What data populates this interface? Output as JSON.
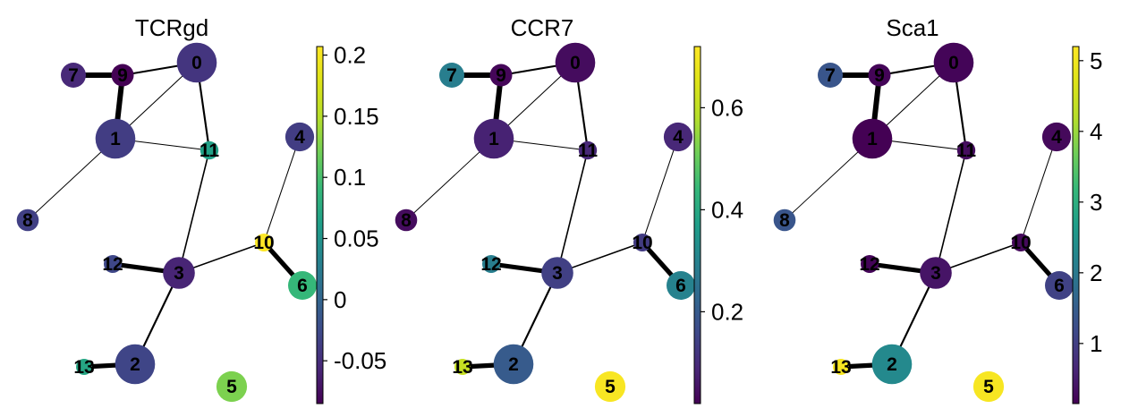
{
  "chart_data": {
    "type": "graph",
    "nodes": [
      "0",
      "1",
      "2",
      "3",
      "4",
      "5",
      "6",
      "7",
      "8",
      "9",
      "10",
      "11",
      "12",
      "13"
    ],
    "node_sizes": [
      22.3,
      22.3,
      22.3,
      17.8,
      16.1,
      17.1,
      16.0,
      14.0,
      12.3,
      12.5,
      10.0,
      10.2,
      10.0,
      9.0
    ],
    "edges": [
      {
        "source": "9",
        "target": "7",
        "weight": 1.0
      },
      {
        "source": "9",
        "target": "1",
        "weight": 1.0
      },
      {
        "source": "9",
        "target": "0",
        "weight": 0.3
      },
      {
        "source": "1",
        "target": "0",
        "weight": 0.1
      },
      {
        "source": "0",
        "target": "11",
        "weight": 0.3
      },
      {
        "source": "1",
        "target": "11",
        "weight": 0.1
      },
      {
        "source": "1",
        "target": "8",
        "weight": 0.08
      },
      {
        "source": "11",
        "target": "3",
        "weight": 0.2
      },
      {
        "source": "4",
        "target": "10",
        "weight": 0.1
      },
      {
        "source": "10",
        "target": "3",
        "weight": 0.2
      },
      {
        "source": "10",
        "target": "6",
        "weight": 0.85
      },
      {
        "source": "12",
        "target": "3",
        "weight": 0.85
      },
      {
        "source": "3",
        "target": "2",
        "weight": 0.3
      },
      {
        "source": "13",
        "target": "2",
        "weight": 0.85
      }
    ],
    "panels": [
      {
        "title": "TCRgd",
        "colormap": "viridis",
        "vmin": -0.085,
        "vmax": 0.207,
        "ticks": [
          -0.05,
          0,
          0.05,
          0.1,
          0.15,
          0.2
        ],
        "tick_labels": [
          "-0.05",
          "0",
          "0.05",
          "0.1",
          "0.15",
          "0.2"
        ],
        "values": [
          -0.044,
          -0.037,
          -0.03,
          -0.058,
          -0.037,
          0.125,
          0.09,
          -0.055,
          -0.035,
          -0.085,
          0.207,
          0.065,
          -0.028,
          0.07
        ]
      },
      {
        "title": "CCR7",
        "colormap": "viridis",
        "vmin": 0.02,
        "vmax": 0.72,
        "ticks": [
          0.2,
          0.4,
          0.6
        ],
        "tick_labels": [
          "0.2",
          "0.4",
          "0.6"
        ],
        "values": [
          0.04,
          0.08,
          0.2,
          0.14,
          0.09,
          0.71,
          0.3,
          0.29,
          0.04,
          0.03,
          0.13,
          0.09,
          0.29,
          0.61
        ]
      },
      {
        "title": "Sca1",
        "colormap": "viridis",
        "vmin": 0.15,
        "vmax": 5.2,
        "ticks": [
          1,
          2,
          3,
          4,
          5
        ],
        "tick_labels": [
          "1",
          "2",
          "3",
          "4",
          "5"
        ],
        "values": [
          0.2,
          0.15,
          2.3,
          0.4,
          0.25,
          5.1,
          1.05,
          1.35,
          1.35,
          0.2,
          0.25,
          0.3,
          0.2,
          5.1
        ]
      }
    ]
  }
}
